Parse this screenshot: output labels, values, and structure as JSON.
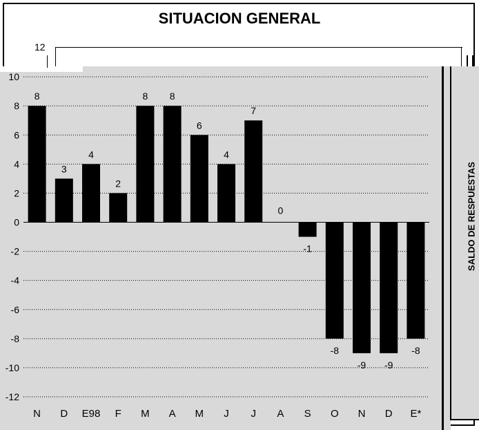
{
  "chart_data": {
    "type": "bar",
    "title": "SITUACION GENERAL",
    "ylabel": "SALDO DE RESPUESTAS",
    "categories": [
      "N",
      "D",
      "E98",
      "F",
      "M",
      "A",
      "M",
      "J",
      "J",
      "A",
      "S",
      "O",
      "N",
      "D",
      "E*"
    ],
    "values": [
      8,
      3,
      4,
      2,
      8,
      8,
      6,
      4,
      7,
      0,
      -1,
      -8,
      -9,
      -9,
      -8
    ],
    "value_labels": [
      "8",
      "3",
      "4",
      "2",
      "8",
      "8",
      "6",
      "4",
      "7",
      "0",
      "-1",
      "-8",
      "-9",
      "-9",
      "-8"
    ],
    "yticks": [
      "12",
      "10",
      "8",
      "6",
      "4",
      "2",
      "0",
      "-2",
      "-4",
      "-6",
      "-8",
      "-10",
      "-12"
    ],
    "ylim": [
      -12,
      12
    ],
    "grid": true,
    "colors": {
      "bar": "#000000",
      "plot_background": "#d9d9d9",
      "gridline": "#000000"
    }
  }
}
